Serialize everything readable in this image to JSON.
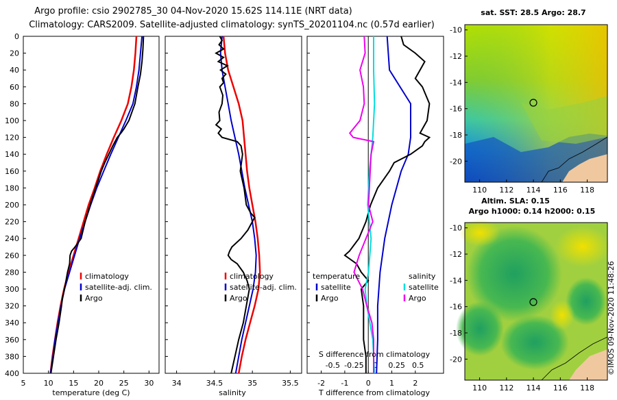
{
  "header": {
    "line1": "Argo profile: csio 2902785_30 04-Nov-2020 15.62S 114.11E (NRT data)",
    "line2": "Climatology: CARS2009. Satellite-adjusted climatology: synTS_20201104.nc (0.57d earlier)"
  },
  "colors": {
    "climatology": "#ee0000",
    "satellite": "#0000cc",
    "argo": "#000000",
    "t_diff": "#ee00ee",
    "s_diff": "#00dddd"
  },
  "depth_ticks": [
    "0",
    "20",
    "40",
    "60",
    "80",
    "100",
    "120",
    "140",
    "160",
    "180",
    "200",
    "220",
    "240",
    "260",
    "280",
    "300",
    "320",
    "340",
    "360",
    "380",
    "400"
  ],
  "chart_data": [
    {
      "type": "line",
      "name": "temperature",
      "xlabel": "temperature (deg C)",
      "xlim": [
        5,
        32
      ],
      "ylim": [
        400,
        0
      ],
      "xticks": [
        "5",
        "10",
        "15",
        "20",
        "25",
        "30"
      ],
      "legend": [
        "climatology",
        "satellite-adj. clim.",
        "Argo"
      ],
      "series": [
        {
          "name": "climatology",
          "depth": [
            0,
            20,
            40,
            60,
            80,
            100,
            120,
            140,
            160,
            180,
            200,
            220,
            240,
            260,
            280,
            300,
            320,
            340,
            360,
            380,
            400
          ],
          "values": [
            27.5,
            27.3,
            27.0,
            26.5,
            25.8,
            24.5,
            23.0,
            21.6,
            20.3,
            19.2,
            18.0,
            17.0,
            16.0,
            15.0,
            14.0,
            13.1,
            12.4,
            11.8,
            11.3,
            10.8,
            10.4
          ]
        },
        {
          "name": "satellite-adj. clim.",
          "depth": [
            0,
            20,
            40,
            60,
            80,
            100,
            120,
            140,
            160,
            180,
            200,
            220,
            240,
            260,
            280,
            300,
            320,
            340,
            360,
            380,
            400
          ],
          "values": [
            28.6,
            28.3,
            28.0,
            27.5,
            26.8,
            25.4,
            23.9,
            22.4,
            21.0,
            19.6,
            18.4,
            17.3,
            16.2,
            15.2,
            14.2,
            13.2,
            12.5,
            11.9,
            11.3,
            10.9,
            10.4
          ]
        },
        {
          "name": "Argo",
          "depth": [
            0,
            15,
            30,
            45,
            60,
            80,
            100,
            110,
            115,
            120,
            130,
            140,
            150,
            160,
            180,
            200,
            220,
            240,
            250,
            255,
            260,
            270,
            280,
            300,
            310,
            320,
            340,
            360,
            380,
            400
          ],
          "values": [
            28.9,
            28.8,
            28.6,
            28.3,
            27.8,
            27.2,
            26.0,
            25.0,
            24.4,
            23.7,
            22.8,
            22.0,
            21.2,
            20.5,
            19.4,
            18.3,
            17.3,
            16.5,
            15.3,
            14.6,
            14.3,
            14.2,
            13.8,
            13.2,
            12.8,
            12.6,
            12.1,
            11.5,
            11.0,
            10.5
          ]
        }
      ]
    },
    {
      "type": "line",
      "name": "salinity",
      "xlabel": "salinity",
      "xlim": [
        33.85,
        35.65
      ],
      "ylim": [
        400,
        0
      ],
      "xticks": [
        "34",
        "34.5",
        "35",
        "35.5"
      ],
      "legend": [
        "climatology",
        "satellite-adj. clim.",
        "Argo"
      ],
      "series": [
        {
          "name": "climatology",
          "depth": [
            0,
            20,
            40,
            60,
            80,
            100,
            120,
            140,
            160,
            180,
            200,
            220,
            240,
            260,
            280,
            300,
            320,
            340,
            360,
            380,
            400
          ],
          "values": [
            34.62,
            34.64,
            34.68,
            34.75,
            34.82,
            34.87,
            34.89,
            34.91,
            34.93,
            34.96,
            35.0,
            35.04,
            35.07,
            35.09,
            35.1,
            35.08,
            35.03,
            34.97,
            34.91,
            34.86,
            34.82
          ]
        },
        {
          "name": "satellite-adj. clim.",
          "depth": [
            0,
            20,
            40,
            60,
            80,
            100,
            120,
            140,
            160,
            180,
            200,
            220,
            240,
            260,
            280,
            300,
            320,
            340,
            360,
            380,
            400
          ],
          "values": [
            34.6,
            34.58,
            34.6,
            34.64,
            34.68,
            34.72,
            34.77,
            34.82,
            34.86,
            34.9,
            34.95,
            35.0,
            35.03,
            35.05,
            35.04,
            35.01,
            34.96,
            34.91,
            34.86,
            34.82,
            34.78
          ]
        },
        {
          "name": "Argo",
          "depth": [
            0,
            5,
            10,
            15,
            20,
            25,
            30,
            35,
            40,
            45,
            50,
            55,
            60,
            70,
            80,
            90,
            100,
            105,
            110,
            115,
            120,
            125,
            130,
            140,
            160,
            180,
            200,
            210,
            215,
            220,
            230,
            240,
            250,
            255,
            260,
            265,
            270,
            280,
            290,
            300,
            320,
            340,
            360,
            380,
            400
          ],
          "values": [
            34.57,
            34.6,
            34.56,
            34.62,
            34.52,
            34.62,
            34.55,
            34.67,
            34.58,
            34.65,
            34.6,
            34.62,
            34.57,
            34.61,
            34.6,
            34.56,
            34.57,
            34.52,
            34.59,
            34.55,
            34.6,
            34.8,
            34.85,
            34.87,
            34.84,
            34.89,
            34.92,
            34.98,
            35.03,
            35.0,
            34.94,
            34.85,
            34.73,
            34.7,
            34.68,
            34.72,
            34.8,
            34.88,
            34.93,
            34.96,
            34.92,
            34.88,
            34.82,
            34.77,
            34.72
          ]
        }
      ]
    },
    {
      "type": "line",
      "name": "difference from climatology",
      "xlabel": "T difference from climatology",
      "xlim": [
        -2.6,
        3.2
      ],
      "ylim": [
        400,
        0
      ],
      "xticks": [
        "-2",
        "-1",
        "0",
        "1",
        "2"
      ],
      "top_label": "S difference from climatology",
      "top_ticks": [
        "-0.5",
        "-0.25",
        "0",
        "0.25",
        "0.5"
      ],
      "legend_temperature_title": "temperature",
      "legend_salinity_title": "salinity",
      "legend_temperature": [
        "satellite",
        "Argo"
      ],
      "legend_salinity": [
        "satellite",
        "Argo"
      ],
      "series": [
        {
          "name": "temperature satellite",
          "depth": [
            0,
            40,
            80,
            120,
            140,
            160,
            200,
            240,
            280,
            320,
            360,
            400
          ],
          "values": [
            0.8,
            0.9,
            1.8,
            1.8,
            1.7,
            1.4,
            1.0,
            0.7,
            0.5,
            0.4,
            0.4,
            0.35
          ]
        },
        {
          "name": "temperature Argo",
          "depth": [
            0,
            10,
            20,
            30,
            40,
            50,
            60,
            80,
            100,
            110,
            115,
            120,
            125,
            130,
            140,
            150,
            160,
            180,
            200,
            220,
            240,
            255,
            260,
            270,
            280,
            290,
            300,
            320,
            340,
            360,
            380,
            400
          ],
          "values": [
            1.4,
            1.5,
            2.0,
            2.4,
            2.2,
            2.0,
            2.3,
            2.6,
            2.5,
            2.3,
            2.2,
            2.6,
            2.4,
            2.3,
            1.8,
            1.1,
            0.9,
            0.4,
            0.1,
            -0.1,
            -0.4,
            -0.8,
            -1.0,
            -0.5,
            -0.3,
            0.0,
            -0.3,
            -0.2,
            -0.2,
            -0.2,
            -0.1,
            -0.1
          ]
        },
        {
          "name": "salinity satellite",
          "depth": [
            0,
            40,
            80,
            120,
            160,
            200,
            240,
            280,
            300,
            320,
            360,
            400
          ],
          "values": [
            -0.02,
            -0.02,
            -0.01,
            -0.03,
            -0.07,
            -0.09,
            -0.05,
            -0.08,
            -0.12,
            -0.1,
            -0.03,
            -0.01
          ]
        },
        {
          "name": "salinity Argo",
          "depth": [
            0,
            20,
            40,
            60,
            80,
            100,
            115,
            120,
            125,
            140,
            160,
            200,
            220,
            240,
            260,
            270,
            280,
            300,
            320,
            340,
            360,
            380,
            400
          ],
          "values": [
            -0.13,
            -0.12,
            -0.18,
            -0.14,
            -0.13,
            -0.18,
            -0.3,
            -0.26,
            -0.02,
            -0.05,
            -0.06,
            -0.08,
            -0.03,
            -0.11,
            -0.19,
            -0.22,
            -0.25,
            -0.15,
            -0.1,
            -0.04,
            -0.02,
            -0.02,
            -0.02
          ]
        }
      ]
    }
  ],
  "maps": {
    "top": {
      "title": "sat. SST: 28.5 Argo: 28.7",
      "yticks": [
        "-10",
        "-12",
        "-14",
        "-16",
        "-18",
        "-20"
      ],
      "xticks": [
        "110",
        "112",
        "114",
        "116",
        "118"
      ]
    },
    "bottom": {
      "title1": "Altim. SLA: 0.15",
      "title2": "Argo h1000: 0.14 h2000: 0.15",
      "yticks": [
        "-10",
        "-12",
        "-14",
        "-16",
        "-18",
        "-20"
      ],
      "xticks": [
        "110",
        "112",
        "114",
        "116",
        "118"
      ]
    }
  },
  "credit": "©IMOS 09-Nov-2020 11:48:26"
}
